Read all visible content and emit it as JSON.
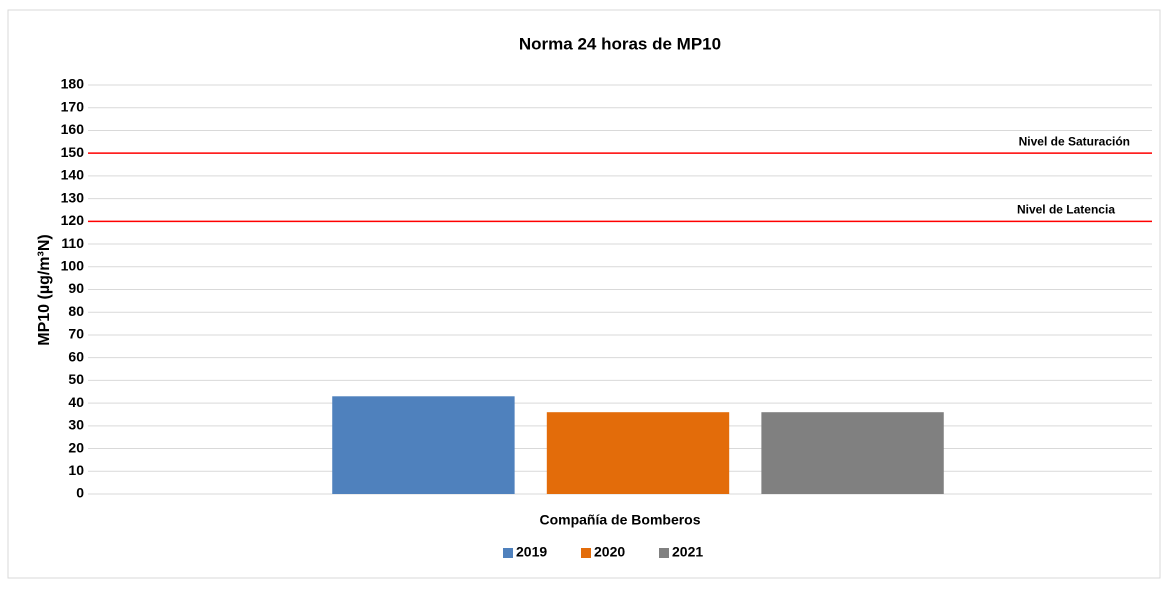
{
  "chart_data": {
    "type": "bar",
    "title": "Norma 24 horas de MP10",
    "ylabel": "MP10 (µg/m³N)",
    "xlabel": "Compañía de Bomberos",
    "categories": [
      "Compañía de Bomberos"
    ],
    "series": [
      {
        "name": "2019",
        "color": "#4f81bd",
        "values": [
          43
        ]
      },
      {
        "name": "2020",
        "color": "#e36c0a",
        "values": [
          36
        ]
      },
      {
        "name": "2021",
        "color": "#808080",
        "values": [
          36
        ]
      }
    ],
    "reference_lines": [
      {
        "value": 150,
        "label": "Nivel de Saturación",
        "color": "#ff0000"
      },
      {
        "value": 120,
        "label": "Nivel de Latencia",
        "color": "#ff0000"
      }
    ],
    "ylim": [
      0,
      180
    ],
    "yticks": [
      0,
      10,
      20,
      30,
      40,
      50,
      60,
      70,
      80,
      90,
      100,
      110,
      120,
      130,
      140,
      150,
      160,
      170,
      180
    ],
    "grid": true,
    "legend": "bottom"
  }
}
